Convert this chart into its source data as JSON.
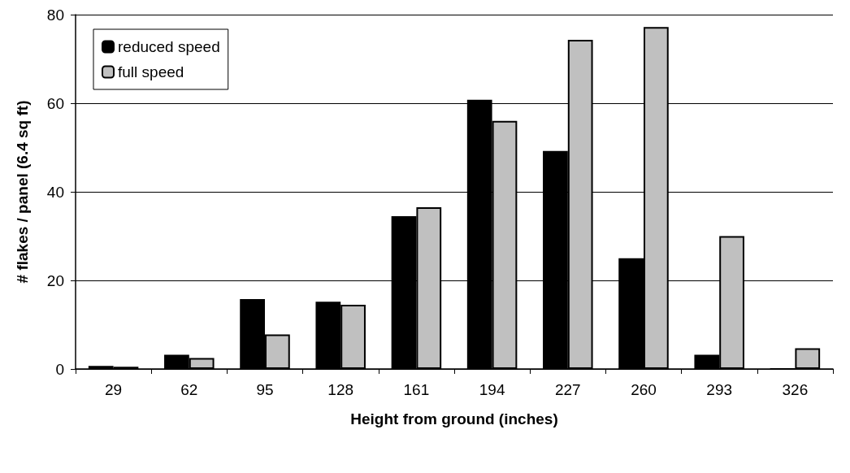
{
  "chart_data": {
    "type": "bar",
    "xlabel": "Height from ground (inches)",
    "ylabel": "# flakes / panel (6.4 sq ft)",
    "categories": [
      "29",
      "62",
      "95",
      "128",
      "161",
      "194",
      "227",
      "260",
      "293",
      "326"
    ],
    "series": [
      {
        "name": "reduced speed",
        "color": "#000000",
        "values": [
          0.7,
          3.2,
          15.8,
          15.2,
          34.5,
          60.8,
          49.2,
          25,
          3.2,
          0
        ]
      },
      {
        "name": "full speed",
        "color": "#c0c0c0",
        "values": [
          0.5,
          2.5,
          7.8,
          14.5,
          36.5,
          56,
          74.3,
          77.2,
          30,
          4.7
        ]
      }
    ],
    "ylim": [
      0,
      80
    ],
    "yticks": [
      0,
      20,
      40,
      60,
      80
    ],
    "grid": "y",
    "legend": "top left"
  }
}
